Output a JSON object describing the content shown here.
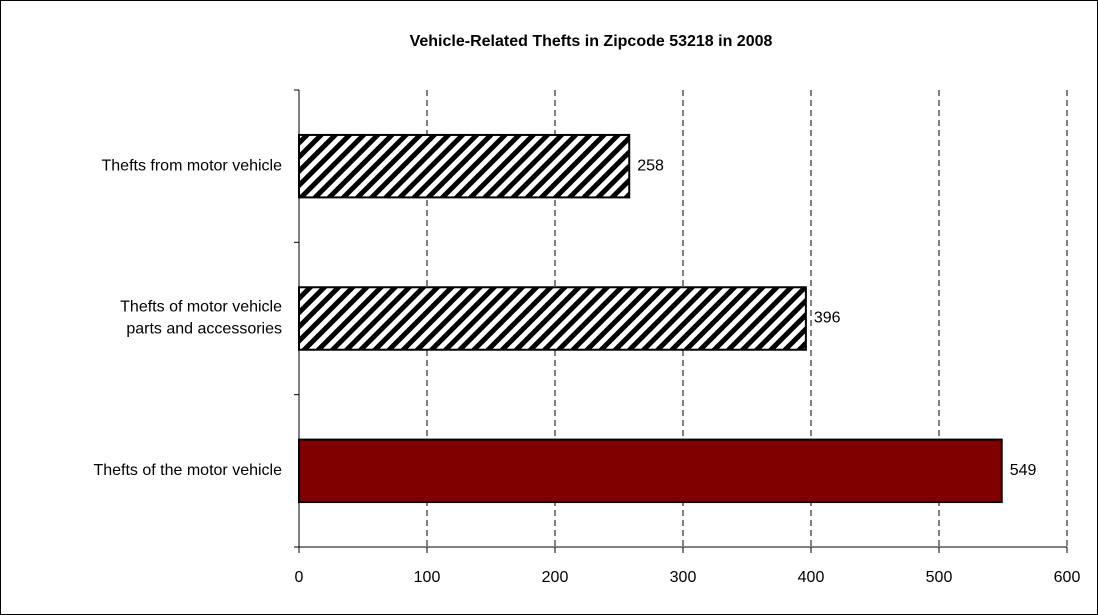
{
  "chart_data": {
    "type": "barh",
    "title": "Vehicle-Related Thefts in Zipcode 53218 in 2008",
    "categories": [
      "Thefts from motor vehicle",
      "Thefts of motor vehicle\nparts and accessories",
      "Thefts of the motor vehicle"
    ],
    "values": [
      258,
      396,
      549
    ],
    "bar_fills": [
      "hatched",
      "hatched",
      "#800000"
    ],
    "xlim": [
      0,
      600
    ],
    "xticks": [
      0,
      100,
      200,
      300,
      400,
      500,
      600
    ],
    "grid": true
  }
}
